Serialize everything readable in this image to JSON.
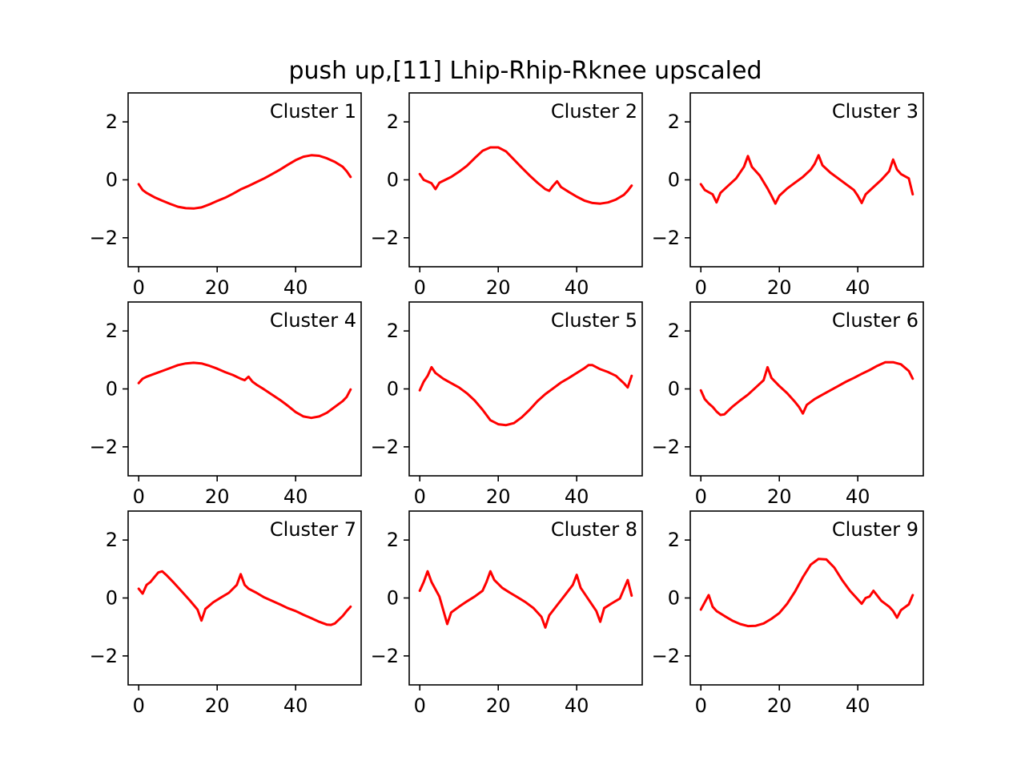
{
  "title": "push up,[11] Lhip-Rhip-Rknee upscaled",
  "line_color": "#ff0000",
  "chart_data": [
    {
      "type": "line",
      "label": "Cluster 1",
      "xlim": [
        -2.7,
        56.7
      ],
      "ylim": [
        -3,
        3
      ],
      "xticks": [
        0,
        20,
        40
      ],
      "xtick_labels": [
        "0",
        "20",
        "40"
      ],
      "yticks": [
        2,
        0,
        -2
      ],
      "ytick_labels": [
        "2",
        "0",
        "−2"
      ],
      "x": [
        0,
        1,
        2,
        4,
        6,
        8,
        10,
        12,
        14,
        16,
        18,
        20,
        22,
        24,
        26,
        28,
        30,
        32,
        34,
        36,
        38,
        40,
        42,
        44,
        46,
        48,
        50,
        52,
        53,
        54
      ],
      "y": [
        -0.15,
        -0.35,
        -0.45,
        -0.6,
        -0.72,
        -0.83,
        -0.93,
        -0.98,
        -0.99,
        -0.95,
        -0.85,
        -0.73,
        -0.62,
        -0.48,
        -0.33,
        -0.21,
        -0.08,
        0.05,
        0.2,
        0.35,
        0.52,
        0.68,
        0.8,
        0.85,
        0.83,
        0.74,
        0.62,
        0.45,
        0.3,
        0.1
      ]
    },
    {
      "type": "line",
      "label": "Cluster 2",
      "xlim": [
        -2.7,
        56.7
      ],
      "ylim": [
        -3,
        3
      ],
      "xticks": [
        0,
        20,
        40
      ],
      "xtick_labels": [
        "0",
        "20",
        "40"
      ],
      "yticks": [
        2,
        0,
        -2
      ],
      "ytick_labels": [
        "2",
        "0",
        "−2"
      ],
      "x": [
        0,
        1,
        3,
        4,
        5,
        8,
        10,
        12,
        14,
        16,
        18,
        20,
        22,
        24,
        26,
        28,
        30,
        32,
        33,
        34,
        35,
        36,
        38,
        40,
        42,
        44,
        46,
        48,
        50,
        52,
        53,
        54
      ],
      "y": [
        0.2,
        0.0,
        -0.12,
        -0.32,
        -0.1,
        0.1,
        0.28,
        0.48,
        0.75,
        1.0,
        1.12,
        1.12,
        0.98,
        0.7,
        0.42,
        0.15,
        -0.1,
        -0.32,
        -0.38,
        -0.2,
        -0.05,
        -0.25,
        -0.42,
        -0.58,
        -0.72,
        -0.8,
        -0.82,
        -0.78,
        -0.68,
        -0.52,
        -0.38,
        -0.2
      ]
    },
    {
      "type": "line",
      "label": "Cluster 3",
      "xlim": [
        -2.7,
        56.7
      ],
      "ylim": [
        -3,
        3
      ],
      "xticks": [
        0,
        20,
        40
      ],
      "xtick_labels": [
        "0",
        "20",
        "40"
      ],
      "yticks": [
        2,
        0,
        -2
      ],
      "ytick_labels": [
        "2",
        "0",
        "−2"
      ],
      "x": [
        0,
        1,
        3,
        4,
        5,
        7,
        9,
        11,
        12,
        13,
        15,
        17,
        18,
        19,
        20,
        22,
        24,
        26,
        28,
        29,
        30,
        31,
        33,
        35,
        37,
        39,
        40,
        41,
        42,
        44,
        46,
        48,
        49,
        50,
        51,
        53,
        54
      ],
      "y": [
        -0.15,
        -0.35,
        -0.5,
        -0.78,
        -0.45,
        -0.2,
        0.05,
        0.45,
        0.82,
        0.45,
        0.15,
        -0.3,
        -0.55,
        -0.82,
        -0.55,
        -0.3,
        -0.1,
        0.1,
        0.35,
        0.55,
        0.85,
        0.5,
        0.25,
        0.05,
        -0.15,
        -0.35,
        -0.55,
        -0.8,
        -0.5,
        -0.25,
        0.0,
        0.3,
        0.7,
        0.35,
        0.2,
        0.05,
        -0.5
      ]
    },
    {
      "type": "line",
      "label": "Cluster 4",
      "xlim": [
        -2.7,
        56.7
      ],
      "ylim": [
        -3,
        3
      ],
      "xticks": [
        0,
        20,
        40
      ],
      "xtick_labels": [
        "0",
        "20",
        "40"
      ],
      "yticks": [
        2,
        0,
        -2
      ],
      "ytick_labels": [
        "2",
        "0",
        "−2"
      ],
      "x": [
        0,
        1,
        2,
        4,
        6,
        8,
        10,
        12,
        14,
        16,
        18,
        20,
        22,
        24,
        26,
        27,
        28,
        29,
        30,
        32,
        34,
        36,
        38,
        40,
        42,
        44,
        46,
        48,
        50,
        52,
        53,
        54
      ],
      "y": [
        0.2,
        0.35,
        0.42,
        0.52,
        0.62,
        0.72,
        0.82,
        0.88,
        0.9,
        0.88,
        0.8,
        0.7,
        0.58,
        0.48,
        0.35,
        0.3,
        0.42,
        0.25,
        0.15,
        -0.02,
        -0.2,
        -0.38,
        -0.58,
        -0.8,
        -0.95,
        -1.0,
        -0.95,
        -0.82,
        -0.62,
        -0.42,
        -0.28,
        -0.02
      ]
    },
    {
      "type": "line",
      "label": "Cluster 5",
      "xlim": [
        -2.7,
        56.7
      ],
      "ylim": [
        -3,
        3
      ],
      "xticks": [
        0,
        20,
        40
      ],
      "xtick_labels": [
        "0",
        "20",
        "40"
      ],
      "yticks": [
        2,
        0,
        -2
      ],
      "ytick_labels": [
        "2",
        "0",
        "−2"
      ],
      "x": [
        0,
        1,
        2,
        3,
        4,
        6,
        8,
        10,
        12,
        14,
        16,
        18,
        20,
        22,
        24,
        26,
        28,
        30,
        32,
        34,
        36,
        38,
        40,
        42,
        43,
        44,
        46,
        48,
        50,
        52,
        53,
        54
      ],
      "y": [
        -0.05,
        0.25,
        0.45,
        0.75,
        0.55,
        0.35,
        0.2,
        0.05,
        -0.15,
        -0.4,
        -0.72,
        -1.08,
        -1.22,
        -1.25,
        -1.18,
        -0.98,
        -0.72,
        -0.42,
        -0.18,
        0.02,
        0.22,
        0.38,
        0.55,
        0.72,
        0.82,
        0.82,
        0.68,
        0.58,
        0.45,
        0.2,
        0.05,
        0.45
      ]
    },
    {
      "type": "line",
      "label": "Cluster 6",
      "xlim": [
        -2.7,
        56.7
      ],
      "ylim": [
        -3,
        3
      ],
      "xticks": [
        0,
        20,
        40
      ],
      "xtick_labels": [
        "0",
        "20",
        "40"
      ],
      "yticks": [
        2,
        0,
        -2
      ],
      "ytick_labels": [
        "2",
        "0",
        "−2"
      ],
      "x": [
        0,
        1,
        2,
        3,
        4,
        5,
        6,
        8,
        10,
        12,
        14,
        16,
        17,
        18,
        20,
        22,
        24,
        25,
        26,
        27,
        29,
        31,
        33,
        35,
        37,
        39,
        41,
        43,
        45,
        47,
        49,
        51,
        53,
        54
      ],
      "y": [
        -0.05,
        -0.35,
        -0.5,
        -0.62,
        -0.78,
        -0.9,
        -0.88,
        -0.62,
        -0.4,
        -0.2,
        0.05,
        0.3,
        0.75,
        0.38,
        0.1,
        -0.15,
        -0.45,
        -0.62,
        -0.85,
        -0.55,
        -0.35,
        -0.2,
        -0.05,
        0.1,
        0.25,
        0.38,
        0.52,
        0.65,
        0.8,
        0.92,
        0.92,
        0.85,
        0.62,
        0.35
      ]
    },
    {
      "type": "line",
      "label": "Cluster 7",
      "xlim": [
        -2.7,
        56.7
      ],
      "ylim": [
        -3,
        3
      ],
      "xticks": [
        0,
        20,
        40
      ],
      "xtick_labels": [
        "0",
        "20",
        "40"
      ],
      "yticks": [
        2,
        0,
        -2
      ],
      "ytick_labels": [
        "2",
        "0",
        "−2"
      ],
      "x": [
        0,
        1,
        2,
        3,
        4,
        5,
        6,
        7,
        9,
        11,
        13,
        15,
        16,
        17,
        19,
        21,
        23,
        25,
        26,
        27,
        28,
        30,
        32,
        34,
        36,
        38,
        40,
        42,
        44,
        46,
        48,
        49,
        50,
        52,
        53,
        54
      ],
      "y": [
        0.32,
        0.15,
        0.45,
        0.55,
        0.72,
        0.88,
        0.92,
        0.8,
        0.52,
        0.22,
        -0.08,
        -0.4,
        -0.78,
        -0.38,
        -0.15,
        0.02,
        0.18,
        0.45,
        0.82,
        0.45,
        0.32,
        0.18,
        0.02,
        -0.1,
        -0.22,
        -0.35,
        -0.45,
        -0.58,
        -0.7,
        -0.82,
        -0.92,
        -0.93,
        -0.88,
        -0.62,
        -0.45,
        -0.3
      ]
    },
    {
      "type": "line",
      "label": "Cluster 8",
      "xlim": [
        -2.7,
        56.7
      ],
      "ylim": [
        -3,
        3
      ],
      "xticks": [
        0,
        20,
        40
      ],
      "xtick_labels": [
        "0",
        "20",
        "40"
      ],
      "yticks": [
        2,
        0,
        -2
      ],
      "ytick_labels": [
        "2",
        "0",
        "−2"
      ],
      "x": [
        0,
        1,
        2,
        3,
        5,
        7,
        8,
        10,
        12,
        14,
        16,
        17,
        18,
        19,
        21,
        23,
        25,
        27,
        29,
        31,
        32,
        33,
        35,
        37,
        39,
        40,
        41,
        43,
        45,
        46,
        47,
        49,
        51,
        53,
        54
      ],
      "y": [
        0.25,
        0.55,
        0.92,
        0.55,
        0.05,
        -0.9,
        -0.5,
        -0.3,
        -0.12,
        0.05,
        0.25,
        0.55,
        0.92,
        0.62,
        0.35,
        0.18,
        0.02,
        -0.15,
        -0.35,
        -0.65,
        -1.02,
        -0.6,
        -0.25,
        0.1,
        0.45,
        0.8,
        0.35,
        -0.05,
        -0.45,
        -0.82,
        -0.35,
        -0.18,
        -0.02,
        0.62,
        0.08
      ]
    },
    {
      "type": "line",
      "label": "Cluster 9",
      "xlim": [
        -2.7,
        56.7
      ],
      "ylim": [
        -3,
        3
      ],
      "xticks": [
        0,
        20,
        40
      ],
      "xtick_labels": [
        "0",
        "20",
        "40"
      ],
      "yticks": [
        2,
        0,
        -2
      ],
      "ytick_labels": [
        "2",
        "0",
        "−2"
      ],
      "x": [
        0,
        1,
        2,
        3,
        4,
        6,
        8,
        10,
        12,
        14,
        16,
        18,
        20,
        22,
        24,
        26,
        28,
        30,
        32,
        34,
        36,
        38,
        40,
        41,
        42,
        43,
        44,
        46,
        48,
        49,
        50,
        51,
        53,
        54
      ],
      "y": [
        -0.4,
        -0.15,
        0.1,
        -0.3,
        -0.45,
        -0.62,
        -0.78,
        -0.9,
        -0.97,
        -0.96,
        -0.88,
        -0.72,
        -0.52,
        -0.2,
        0.22,
        0.72,
        1.15,
        1.35,
        1.33,
        1.05,
        0.62,
        0.25,
        -0.05,
        -0.2,
        0.0,
        0.05,
        0.25,
        -0.1,
        -0.3,
        -0.45,
        -0.68,
        -0.42,
        -0.22,
        0.1
      ]
    }
  ]
}
